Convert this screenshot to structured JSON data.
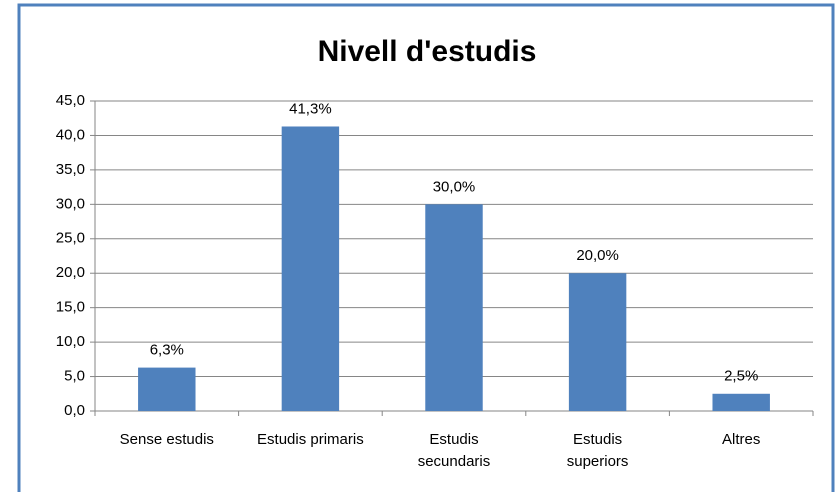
{
  "chart_data": {
    "type": "bar",
    "title": "Nivell d'estudis",
    "categories": [
      "Sense estudis",
      "Estudis primaris",
      "Estudis secundaris",
      "Estudis superiors",
      "Altres"
    ],
    "values": [
      6.3,
      41.3,
      30.0,
      20.0,
      2.5
    ],
    "value_labels": [
      "6,3%",
      "41,3%",
      "30,0%",
      "20,0%",
      "2,5%"
    ],
    "color": "#4f81bd",
    "ylim": [
      0,
      45
    ],
    "yticks": [
      {
        "value": 0,
        "label": "0,0"
      },
      {
        "value": 5,
        "label": "5,0"
      },
      {
        "value": 10,
        "label": "10,0"
      },
      {
        "value": 15,
        "label": "15,0"
      },
      {
        "value": 20,
        "label": "20,0"
      },
      {
        "value": 25,
        "label": "25,0"
      },
      {
        "value": 30,
        "label": "30,0"
      },
      {
        "value": 35,
        "label": "35,0"
      },
      {
        "value": 40,
        "label": "40,0"
      },
      {
        "value": 45,
        "label": "45,0"
      }
    ],
    "grid": true
  }
}
